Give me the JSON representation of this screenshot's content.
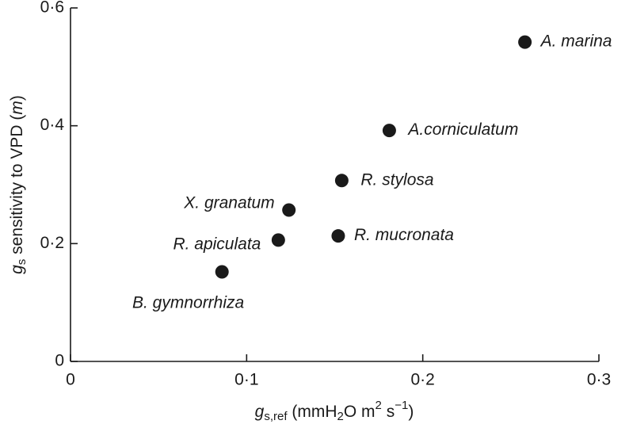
{
  "chart_data": {
    "type": "scatter",
    "xlabel": [
      "g",
      "s,ref",
      " (mmH",
      "2",
      "O m",
      "2",
      " s",
      "−1",
      ")"
    ],
    "ylabel": [
      "g",
      "s",
      " sensitivity to VPD (",
      "m",
      ")"
    ],
    "labels": [
      "A. marina",
      "A.corniculatum",
      "R. stylosa",
      "X. granatum",
      "R. apiculata",
      "R. mucronata",
      "B. gymnorrhiza"
    ],
    "x": [
      0.258,
      0.181,
      0.154,
      0.124,
      0.118,
      0.152,
      0.086
    ],
    "values": [
      0.542,
      0.392,
      0.307,
      0.257,
      0.206,
      0.213,
      0.152
    ],
    "color": "#1a1a1a",
    "xlim": [
      0,
      0.3
    ],
    "ylim": [
      0,
      0.6
    ],
    "xticks": [
      0,
      {
        "value": 0.1,
        "label": "0·1"
      },
      {
        "value": 0.2,
        "label": "0·2"
      },
      {
        "value": 0.3,
        "label": "0·3"
      }
    ],
    "yticks": [
      0,
      {
        "value": 0.2,
        "label": "0·2"
      },
      {
        "value": 0.4,
        "label": "0·4"
      },
      {
        "value": 0.6,
        "label": "0·6"
      }
    ]
  }
}
